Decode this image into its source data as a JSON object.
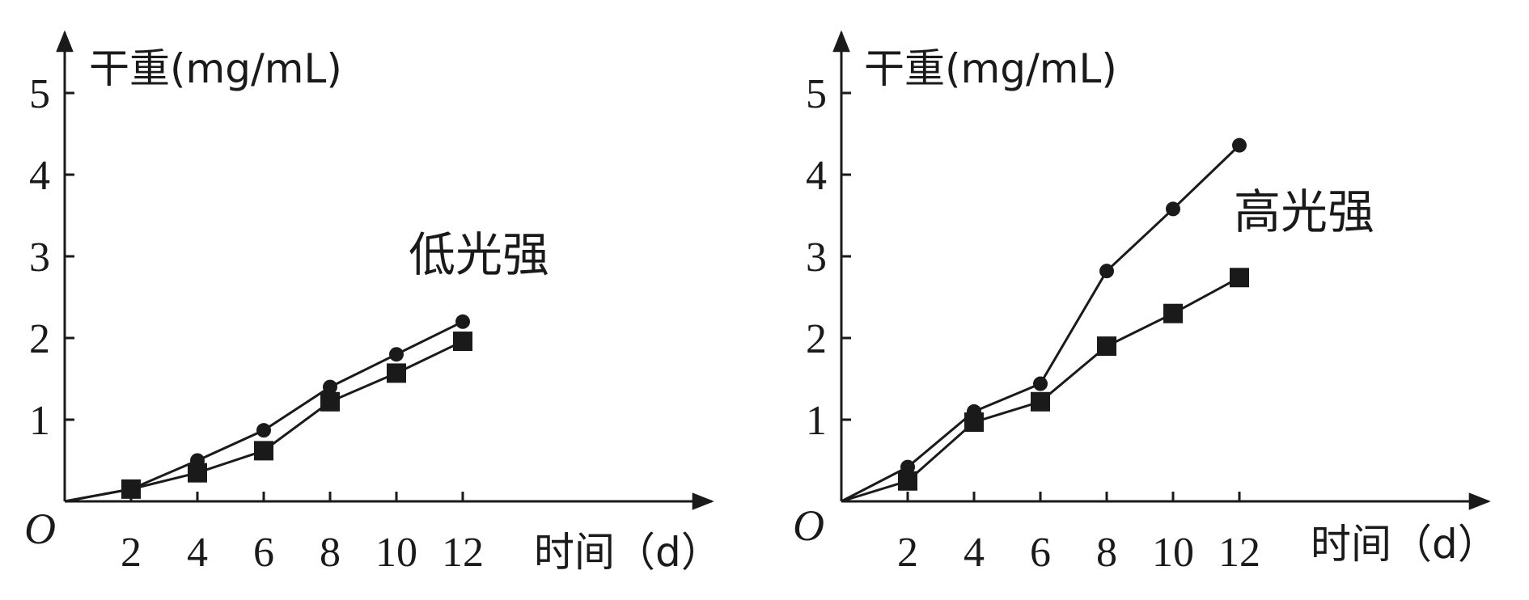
{
  "chart_data": [
    {
      "type": "line",
      "annotation": "低光强",
      "ylabel": "干重(mg/mL)",
      "xlabel": "时间（d）",
      "origin_label": "O",
      "x_ticks": [
        "2",
        "4",
        "6",
        "8",
        "10",
        "12"
      ],
      "y_ticks": [
        "1",
        "2",
        "3",
        "4",
        "5"
      ],
      "xlim": [
        0,
        19.5
      ],
      "ylim": [
        0,
        5.5
      ],
      "grid": false,
      "series": [
        {
          "marker": "circle",
          "x": [
            0,
            2,
            4,
            6,
            8,
            10,
            12
          ],
          "values": [
            0,
            0.15,
            0.5,
            0.87,
            1.4,
            1.8,
            2.2
          ]
        },
        {
          "marker": "square",
          "x": [
            0,
            2,
            4,
            6,
            8,
            10,
            12
          ],
          "values": [
            0,
            0.15,
            0.35,
            0.62,
            1.22,
            1.57,
            1.96
          ]
        }
      ]
    },
    {
      "type": "line",
      "annotation": "高光强",
      "ylabel": "干重(mg/mL)",
      "xlabel": "时间（d）",
      "origin_label": "O",
      "x_ticks": [
        "2",
        "4",
        "6",
        "8",
        "10",
        "12"
      ],
      "y_ticks": [
        "1",
        "2",
        "3",
        "4",
        "5"
      ],
      "xlim": [
        0,
        19.5
      ],
      "ylim": [
        0,
        5.5
      ],
      "grid": false,
      "series": [
        {
          "marker": "circle",
          "x": [
            0,
            2,
            4,
            6,
            8,
            10,
            12
          ],
          "values": [
            0,
            0.42,
            1.1,
            1.44,
            2.82,
            3.58,
            4.36
          ]
        },
        {
          "marker": "square",
          "x": [
            0,
            2,
            4,
            6,
            8,
            10,
            12
          ],
          "values": [
            0,
            0.25,
            0.97,
            1.22,
            1.9,
            2.3,
            2.74
          ]
        }
      ]
    }
  ]
}
